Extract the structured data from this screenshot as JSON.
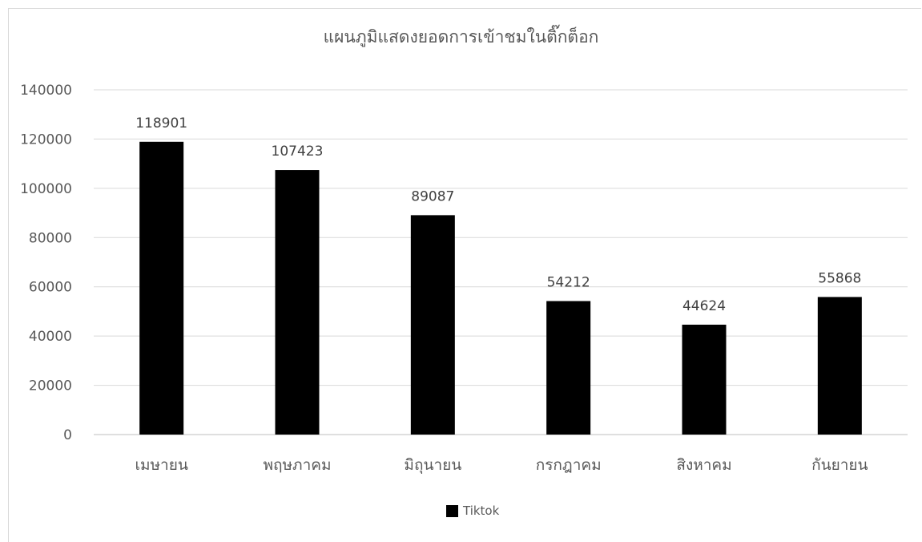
{
  "chart_data": {
    "type": "bar",
    "title": "แผนภูมิแสดงยอดการเข้าชมในติ๊กต็อก",
    "categories": [
      "เมษายน",
      "พฤษภาคม",
      "มิถุนายน",
      "กรกฎาคม",
      "สิงหาคม",
      "กันยายน"
    ],
    "series": [
      {
        "name": "Tiktok",
        "values": [
          118901,
          107423,
          89087,
          54212,
          44624,
          55868
        ],
        "color": "#000000"
      }
    ],
    "ylim": [
      0,
      140000
    ],
    "yticks": [
      0,
      20000,
      40000,
      60000,
      80000,
      100000,
      120000,
      140000
    ],
    "grid": true,
    "legend_position": "bottom",
    "data_labels": true,
    "gridline_color": "#d9d9d9",
    "axis_text_color": "#595959"
  }
}
